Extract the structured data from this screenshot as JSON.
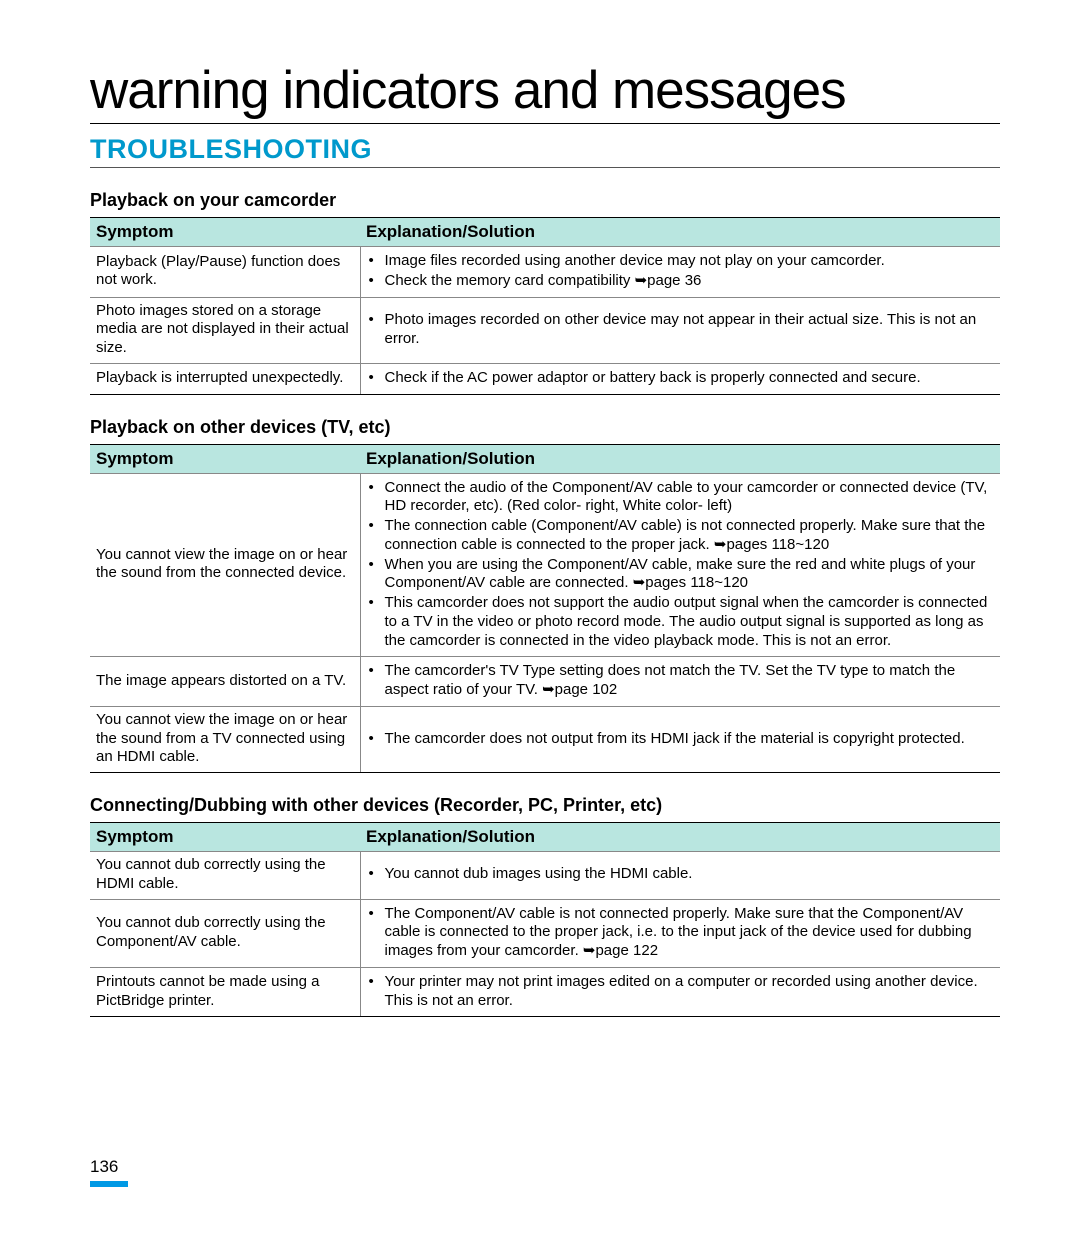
{
  "colors": {
    "section_title": "#0099cc",
    "table_header_bg": "#b9e6e0",
    "page_marker": "#0099e5",
    "border_dark": "#000000",
    "border_light": "#888888",
    "text": "#000000",
    "background": "#ffffff"
  },
  "page_title": "warning indicators and messages",
  "section_title": "TROUBLESHOOTING",
  "page_number": "136",
  "arrow_glyph": "➥",
  "tables": [
    {
      "heading": "Playback on your camcorder",
      "col_symptom": "Symptom",
      "col_solution": "Explanation/Solution",
      "rows": [
        {
          "symptom": "Playback (Play/Pause) function does not work.",
          "solutions": [
            "Image files recorded using another device may not play on your camcorder.",
            "Check the memory card compatibility ➥page 36"
          ]
        },
        {
          "symptom": "Photo images stored on a storage media are not displayed in their actual size.",
          "solutions": [
            "Photo images recorded on other device may not appear in their actual size. This is not an error."
          ]
        },
        {
          "symptom": "Playback is interrupted unexpectedly.",
          "solutions": [
            "Check if the AC power adaptor or battery back is properly connected and secure."
          ]
        }
      ]
    },
    {
      "heading": "Playback on other devices (TV, etc)",
      "col_symptom": "Symptom",
      "col_solution": "Explanation/Solution",
      "rows": [
        {
          "symptom": "You cannot view the image on or hear the sound from the connected device.",
          "solutions": [
            "Connect the audio of the Component/AV cable to your camcorder or connected device (TV, HD recorder, etc). (Red color- right, White color- left)",
            "The connection cable (Component/AV cable) is not connected properly. Make sure that the connection cable is connected to the proper jack. ➥pages 118~120",
            "When you are using the Component/AV cable, make sure the red and white plugs of your Component/AV cable are connected. ➥pages 118~120",
            "This camcorder does not support the audio output signal when the camcorder is connected to a TV in the video or photo record mode. The audio output signal is supported as long as the camcorder is connected in the video playback mode. This is not an error."
          ]
        },
        {
          "symptom": "The image appears distorted on a TV.",
          "solutions": [
            "The camcorder's TV Type setting does not match the TV. Set the TV type to match the aspect ratio of your TV. ➥page 102"
          ]
        },
        {
          "symptom": "You cannot view the image on or hear the sound from a TV connected using an HDMI cable.",
          "solutions": [
            "The camcorder does not output from its HDMI jack if the material is copyright protected."
          ]
        }
      ]
    },
    {
      "heading": "Connecting/Dubbing with other devices (Recorder, PC, Printer, etc)",
      "col_symptom": "Symptom",
      "col_solution": "Explanation/Solution",
      "rows": [
        {
          "symptom": "You cannot dub correctly using the HDMI cable.",
          "solutions": [
            "You cannot dub images using the HDMI cable."
          ]
        },
        {
          "symptom": "You cannot dub correctly using the Component/AV cable.",
          "solutions": [
            "The Component/AV cable is not connected properly. Make sure that the Component/AV cable is connected to the proper jack, i.e. to the input jack of the device used for dubbing images from your camcorder. ➥page 122"
          ]
        },
        {
          "symptom": "Printouts cannot be made using a PictBridge printer.",
          "solutions": [
            "Your printer may not print images edited on a computer or recorded using another device. This is not an error."
          ]
        }
      ]
    }
  ]
}
